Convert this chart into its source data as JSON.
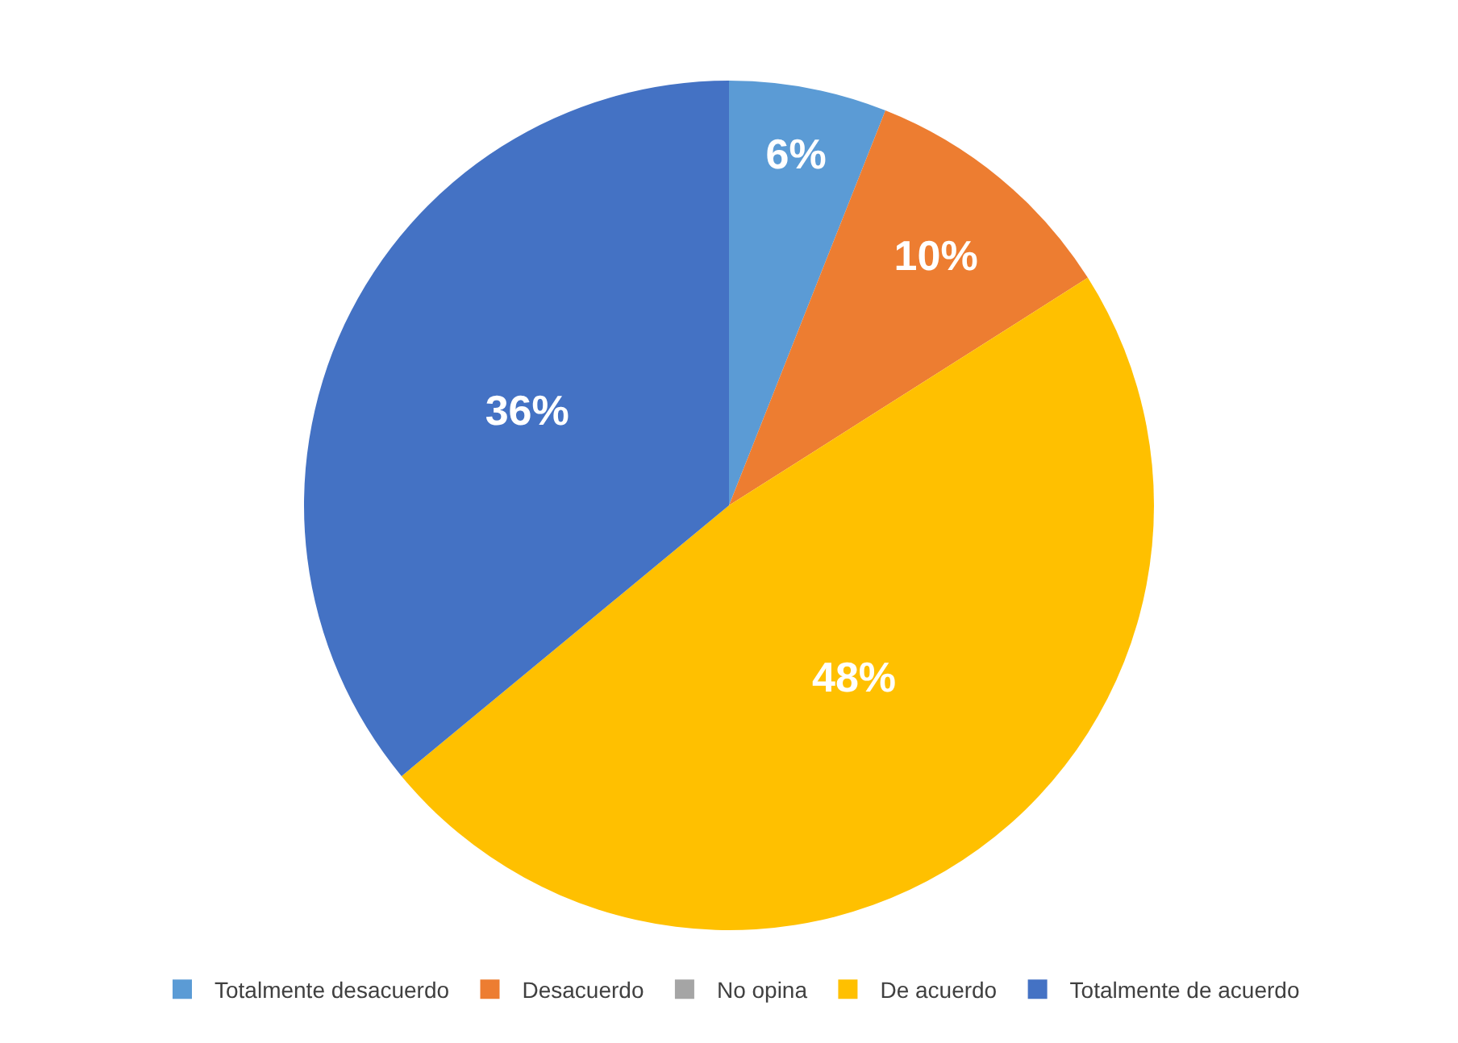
{
  "chart_data": {
    "type": "pie",
    "categories": [
      "Totalmente desacuerdo",
      "Desacuerdo",
      "No opina",
      "De acuerdo",
      "Totalmente de acuerdo"
    ],
    "values": [
      6,
      10,
      0,
      48,
      36
    ],
    "colors": [
      "#5b9bd5",
      "#ed7d31",
      "#a5a5a5",
      "#ffc000",
      "#4472c4"
    ],
    "value_labels": [
      "6%",
      "10%",
      null,
      "48%",
      "36%"
    ],
    "legend": "bottom"
  }
}
